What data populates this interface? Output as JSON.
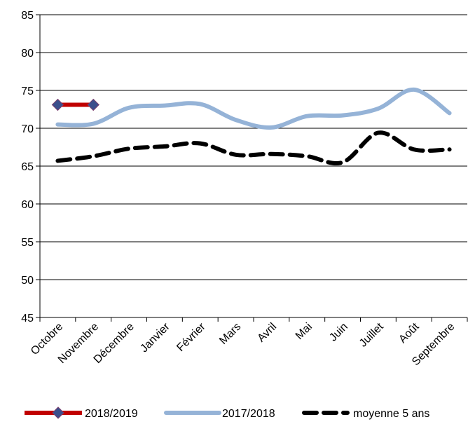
{
  "chart_data": {
    "type": "line",
    "title": "",
    "xlabel": "",
    "ylabel": "",
    "ylim": [
      45,
      85
    ],
    "yticks": [
      45,
      50,
      55,
      60,
      65,
      70,
      75,
      80,
      85
    ],
    "categories": [
      "Octobre",
      "Novembre",
      "Décembre",
      "Janvier",
      "Février",
      "Mars",
      "Avril",
      "Mai",
      "Juin",
      "Juillet",
      "Août",
      "Septembre"
    ],
    "grid": true,
    "legend_position": "bottom",
    "series": [
      {
        "name": "2018/2019",
        "values": [
          73.1,
          73.1,
          null,
          null,
          null,
          null,
          null,
          null,
          null,
          null,
          null,
          null
        ],
        "color": "#C00000",
        "marker_color": "#3A4F8C",
        "style": "solid-with-diamond-markers"
      },
      {
        "name": "2017/2018",
        "values": [
          70.5,
          70.6,
          72.7,
          73.0,
          73.2,
          71.1,
          70.1,
          71.6,
          71.7,
          72.6,
          75.1,
          72.0
        ],
        "color": "#95B3D7",
        "style": "solid"
      },
      {
        "name": "moyenne 5 ans",
        "values": [
          65.7,
          66.3,
          67.3,
          67.6,
          68.0,
          66.5,
          66.6,
          66.3,
          65.5,
          69.4,
          67.2,
          67.2
        ],
        "color": "#000000",
        "style": "dashed"
      }
    ]
  }
}
